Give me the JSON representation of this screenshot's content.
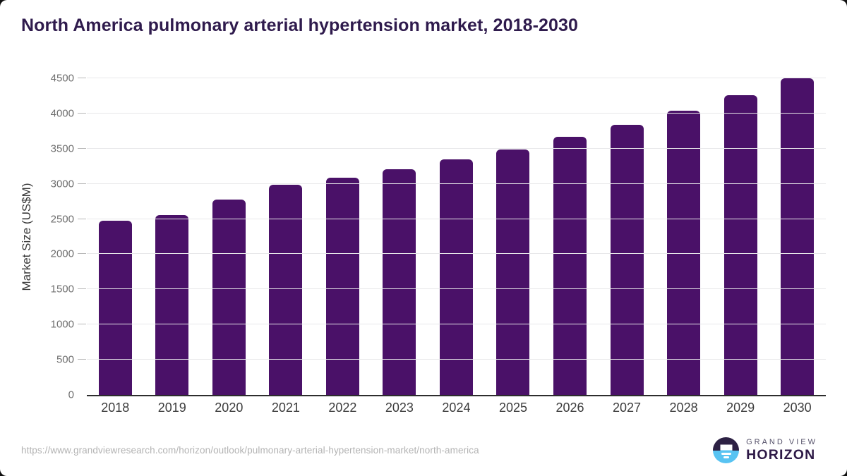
{
  "page": {
    "title": "North America pulmonary arterial hypertension market, 2018-2030",
    "source_url": "https://www.grandviewresearch.com/horizon/outlook/pulmonary-arterial-hypertension-market/north-america"
  },
  "branding": {
    "name_top": "GRAND VIEW",
    "name_bottom": "HORIZON",
    "logo_colors": {
      "top_half": "#2d2144",
      "bottom_half": "#58c3f2"
    }
  },
  "chart_data": {
    "type": "bar",
    "title": "North America pulmonary arterial hypertension market, 2018-2030",
    "categories": [
      "2018",
      "2019",
      "2020",
      "2021",
      "2022",
      "2023",
      "2024",
      "2025",
      "2026",
      "2027",
      "2028",
      "2029",
      "2030"
    ],
    "values": [
      2480,
      2555,
      2780,
      2985,
      3090,
      3210,
      3350,
      3490,
      3665,
      3835,
      4040,
      4255,
      4500
    ],
    "xlabel": "",
    "ylabel": "Market Size (US$M)",
    "ylim": [
      0,
      4500
    ],
    "ytick_step": 500,
    "grid": "horizontal-only",
    "legend": "none",
    "bar_color": "#4a1168",
    "axis_line_color": "#2d2d2d",
    "gridline_color": "#e8e8ea"
  }
}
